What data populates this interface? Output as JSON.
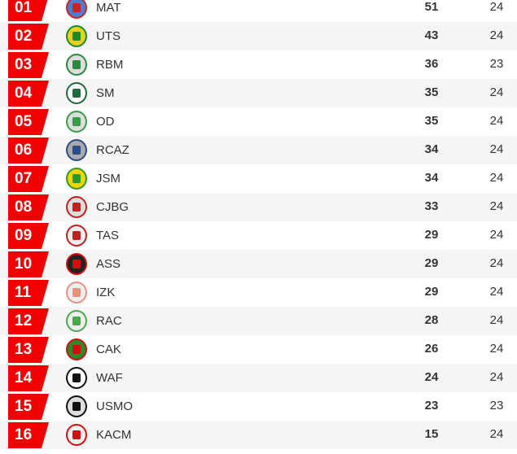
{
  "standings": [
    {
      "rank": "01",
      "team": "MAT",
      "points": "51",
      "played": "24",
      "logo_colors": [
        "#c22",
        "#4a7fd0"
      ]
    },
    {
      "rank": "02",
      "team": "UTS",
      "points": "43",
      "played": "24",
      "logo_colors": [
        "#1d8a2a",
        "#e8d020"
      ]
    },
    {
      "rank": "03",
      "team": "RBM",
      "points": "36",
      "played": "23",
      "logo_colors": [
        "#2a8a40",
        "#ddd"
      ]
    },
    {
      "rank": "04",
      "team": "SM",
      "points": "35",
      "played": "24",
      "logo_colors": [
        "#1d6b3a",
        "#fff"
      ]
    },
    {
      "rank": "05",
      "team": "OD",
      "points": "35",
      "played": "24",
      "logo_colors": [
        "#3a9a4a",
        "#ddd"
      ]
    },
    {
      "rank": "06",
      "team": "RCAZ",
      "points": "34",
      "played": "24",
      "logo_colors": [
        "#2a4d8a",
        "#aaa"
      ]
    },
    {
      "rank": "07",
      "team": "JSM",
      "points": "34",
      "played": "24",
      "logo_colors": [
        "#2a9a2a",
        "#f2d500"
      ]
    },
    {
      "rank": "08",
      "team": "CJBG",
      "points": "33",
      "played": "24",
      "logo_colors": [
        "#c02020",
        "#ddd"
      ]
    },
    {
      "rank": "09",
      "team": "TAS",
      "points": "29",
      "played": "24",
      "logo_colors": [
        "#c02020",
        "#eee"
      ]
    },
    {
      "rank": "10",
      "team": "ASS",
      "points": "29",
      "played": "24",
      "logo_colors": [
        "#d01010",
        "#222"
      ]
    },
    {
      "rank": "11",
      "team": "IZK",
      "points": "29",
      "played": "24",
      "logo_colors": [
        "#e89080",
        "#eee"
      ]
    },
    {
      "rank": "12",
      "team": "RAC",
      "points": "28",
      "played": "24",
      "logo_colors": [
        "#4aa84a",
        "#eee"
      ]
    },
    {
      "rank": "13",
      "team": "CAK",
      "points": "26",
      "played": "24",
      "logo_colors": [
        "#d01010",
        "#2a8a2a"
      ]
    },
    {
      "rank": "14",
      "team": "WAF",
      "points": "24",
      "played": "24",
      "logo_colors": [
        "#111",
        "#fff"
      ]
    },
    {
      "rank": "15",
      "team": "USMO",
      "points": "23",
      "played": "23",
      "logo_colors": [
        "#111",
        "#ddd"
      ]
    },
    {
      "rank": "16",
      "team": "KACM",
      "points": "15",
      "played": "24",
      "logo_colors": [
        "#d01010",
        "#eee"
      ]
    }
  ],
  "colors": {
    "rank_badge": "#f20000",
    "alt_row": "#f5f5f5"
  }
}
